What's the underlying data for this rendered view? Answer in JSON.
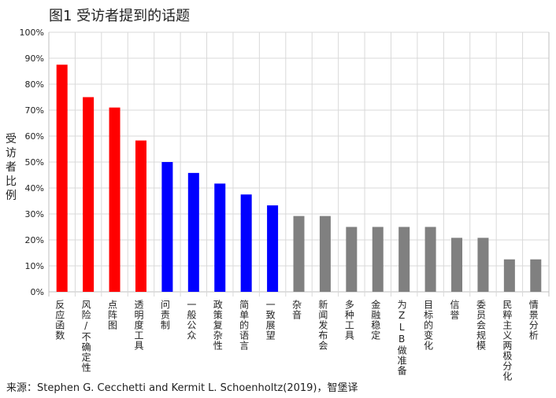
{
  "title": "图1 受访者提到的话题",
  "source": "来源：Stephen G. Cecchetti and Kermit L. Schoenholtz(2019)，智堡译",
  "chart_data": {
    "type": "bar",
    "title": "图1 受访者提到的话题",
    "ylabel": "受访者比例",
    "xlabel": "",
    "ylim": [
      0,
      100
    ],
    "yticks": [
      "0%",
      "10%",
      "20%",
      "30%",
      "40%",
      "50%",
      "60%",
      "70%",
      "80%",
      "90%",
      "100%"
    ],
    "grid": true,
    "categories": [
      "反应函数",
      "风险/不确定性",
      "点阵图",
      "透明度工具",
      "问责制",
      "一般公众",
      "政策复杂性",
      "简单的语言",
      "一致展望",
      "杂音",
      "新闻发布会",
      "多种工具",
      "金融稳定",
      "为ZLB做准备",
      "目标的变化",
      "信誉",
      "委员会规模",
      "民粹主义两极分化",
      "情景分析"
    ],
    "values": [
      87.5,
      75,
      71,
      58.3,
      50,
      45.8,
      41.7,
      37.5,
      33.3,
      29.2,
      29.2,
      25,
      25,
      25,
      25,
      20.8,
      20.8,
      12.5,
      12.5
    ],
    "bar_colors": [
      "#ff0000",
      "#ff0000",
      "#ff0000",
      "#ff0000",
      "#0000ff",
      "#0000ff",
      "#0000ff",
      "#0000ff",
      "#0000ff",
      "#808080",
      "#808080",
      "#808080",
      "#808080",
      "#808080",
      "#808080",
      "#808080",
      "#808080",
      "#808080",
      "#808080"
    ],
    "grid_color": "#d9d9d9",
    "axis_color": "#bfbfbf"
  }
}
